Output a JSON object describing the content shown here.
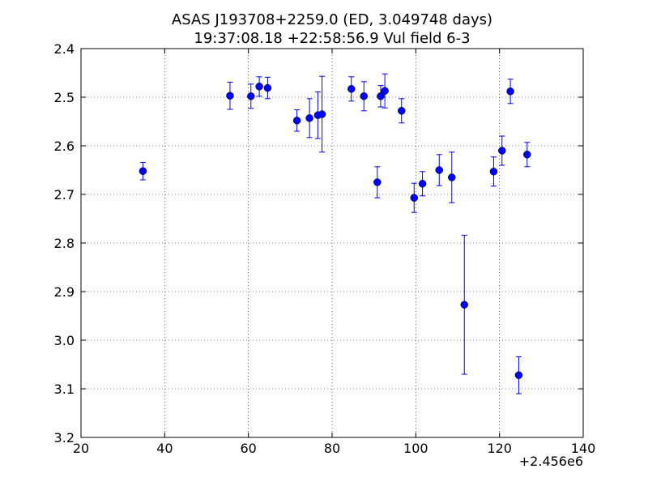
{
  "chart_data": {
    "type": "scatter",
    "title": "ASAS J193708+2259.0 (ED, 3.049748 days)",
    "subtitle": "19:37:08.18 +22:58:56.9 Vul field 6-3",
    "xlabel": "",
    "ylabel": "",
    "x_offset_label": "+2.456e6",
    "xlim": [
      20,
      140
    ],
    "ylim": [
      2.4,
      3.2
    ],
    "y_inverted": true,
    "grid": true,
    "x_ticks": [
      20,
      40,
      60,
      80,
      100,
      120,
      140
    ],
    "x_tick_labels": [
      "20",
      "40",
      "60",
      "80",
      "100",
      "120",
      "140"
    ],
    "y_ticks": [
      2.4,
      2.5,
      2.6,
      2.7,
      2.8,
      2.9,
      3.0,
      3.1,
      3.2
    ],
    "y_tick_labels": [
      "2.4",
      "2.5",
      "2.6",
      "2.7",
      "2.8",
      "2.9",
      "3.0",
      "3.1",
      "3.2"
    ],
    "marker_color": "#0000ff",
    "errorbar_color": "#0000ff",
    "points": [
      {
        "x": 34.8,
        "y": 2.652,
        "err": 0.018
      },
      {
        "x": 55.6,
        "y": 2.497,
        "err": 0.028
      },
      {
        "x": 60.6,
        "y": 2.498,
        "err": 0.025
      },
      {
        "x": 62.6,
        "y": 2.478,
        "err": 0.02
      },
      {
        "x": 64.6,
        "y": 2.481,
        "err": 0.022
      },
      {
        "x": 71.6,
        "y": 2.548,
        "err": 0.022
      },
      {
        "x": 74.6,
        "y": 2.543,
        "err": 0.04
      },
      {
        "x": 76.6,
        "y": 2.537,
        "err": 0.048
      },
      {
        "x": 77.6,
        "y": 2.535,
        "err": 0.078
      },
      {
        "x": 84.6,
        "y": 2.483,
        "err": 0.025
      },
      {
        "x": 87.6,
        "y": 2.498,
        "err": 0.03
      },
      {
        "x": 90.8,
        "y": 2.675,
        "err": 0.032
      },
      {
        "x": 91.6,
        "y": 2.498,
        "err": 0.022
      },
      {
        "x": 92.6,
        "y": 2.487,
        "err": 0.035
      },
      {
        "x": 96.6,
        "y": 2.528,
        "err": 0.025
      },
      {
        "x": 99.6,
        "y": 2.707,
        "err": 0.03
      },
      {
        "x": 101.6,
        "y": 2.678,
        "err": 0.025
      },
      {
        "x": 105.6,
        "y": 2.65,
        "err": 0.032
      },
      {
        "x": 108.6,
        "y": 2.665,
        "err": 0.052
      },
      {
        "x": 111.6,
        "y": 2.927,
        "err": 0.143
      },
      {
        "x": 118.6,
        "y": 2.653,
        "err": 0.03
      },
      {
        "x": 120.6,
        "y": 2.61,
        "err": 0.03
      },
      {
        "x": 122.6,
        "y": 2.488,
        "err": 0.025
      },
      {
        "x": 124.6,
        "y": 3.072,
        "err": 0.038
      },
      {
        "x": 126.6,
        "y": 2.618,
        "err": 0.025
      }
    ]
  }
}
